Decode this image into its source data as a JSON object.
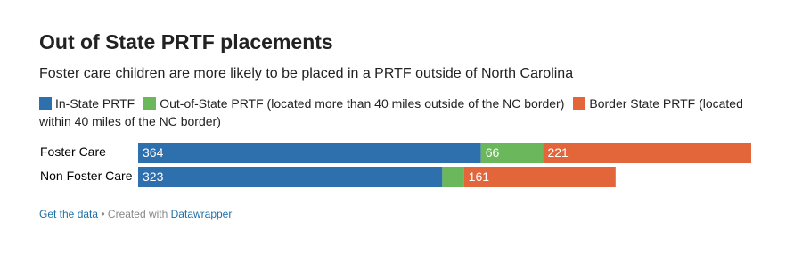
{
  "chart_data": {
    "type": "stacked-bar",
    "title": "Out of State PRTF placements",
    "subtitle": "Foster care children are more likely to be placed in a PRTF outside of North Carolina",
    "categories": [
      "Foster Care",
      "Non Foster Care"
    ],
    "series": [
      {
        "name": "In-State PRTF",
        "color": "#2e6fad",
        "values": [
          364,
          323
        ]
      },
      {
        "name": "Out-of-State PRTF (located more than 40 miles outside of the NC border)",
        "color": "#6bb85c",
        "values": [
          66,
          23
        ]
      },
      {
        "name": "Border State PRTF (located within 40 miles of the NC border)",
        "color": "#e2663a",
        "values": [
          221,
          161
        ]
      }
    ]
  },
  "footer": {
    "link": "Get the data",
    "separator": "• Created with",
    "credit": "Datawrapper"
  }
}
